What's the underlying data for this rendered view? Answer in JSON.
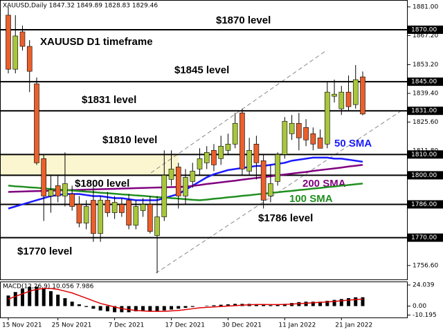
{
  "chart_data": {
    "type": "candlestick",
    "header": "XAUUSD,Daily 1847.32 1849.89 1828.83 1829.46",
    "title": "XAUUSD D1 timeframe",
    "categories": [
      "15 Nov 2021",
      null,
      null,
      null,
      null,
      null,
      null,
      "25 Nov 2021",
      null,
      null,
      null,
      null,
      null,
      null,
      null,
      "7 Dec 2021",
      null,
      null,
      null,
      null,
      null,
      null,
      null,
      "17 Dec 2021",
      null,
      null,
      null,
      null,
      null,
      null,
      null,
      "30 Dec 2021",
      null,
      null,
      null,
      null,
      null,
      null,
      null,
      "11 Jan 2022",
      null,
      null,
      null,
      null,
      null,
      null,
      null,
      "21 Jan 2022",
      null,
      null,
      null
    ],
    "open": [
      1877,
      1851,
      1869,
      1862,
      1844,
      1808,
      1790,
      1795,
      1790,
      1791,
      1786,
      1777,
      1788,
      1772,
      1788,
      1782,
      1786,
      1788,
      1776,
      1783,
      1786,
      1771,
      1780,
      1798,
      1804,
      1790,
      1797,
      1803,
      1806,
      1812,
      1808,
      1812,
      1815,
      1830,
      1802,
      1815,
      1807,
      1790,
      1797,
      1810,
      1820,
      1825,
      1823,
      1820,
      1818,
      1815,
      1838,
      1832,
      1840,
      1834,
      1847.32
    ],
    "high": [
      1881,
      1877,
      1872,
      1865,
      1847,
      1810,
      1800,
      1800,
      1811,
      1795,
      1790,
      1788,
      1795,
      1790,
      1792,
      1790,
      1789,
      1791,
      1788,
      1789,
      1790,
      1790,
      1812,
      1812,
      1806,
      1803,
      1806,
      1813,
      1814,
      1815,
      1819,
      1820,
      1830,
      1832,
      1818,
      1819,
      1810,
      1805,
      1811,
      1828,
      1829,
      1830,
      1827,
      1823,
      1822,
      1845,
      1846,
      1843,
      1848,
      1853,
      1849.89
    ],
    "low": [
      1849,
      1849,
      1860,
      1840,
      1805,
      1778,
      1782,
      1787,
      1785,
      1783,
      1775,
      1774,
      1768,
      1768,
      1780,
      1779,
      1780,
      1774,
      1774,
      1780,
      1772,
      1753,
      1778,
      1795,
      1784,
      1786,
      1794,
      1800,
      1803,
      1802,
      1805,
      1810,
      1813,
      1800,
      1800,
      1798,
      1784,
      1787,
      1795,
      1808,
      1817,
      1812,
      1814,
      1812,
      1813,
      1813,
      1835,
      1829,
      1831,
      1832,
      1828.83
    ],
    "close": [
      1851,
      1867,
      1862,
      1850,
      1806,
      1790,
      1793,
      1790,
      1796,
      1785,
      1777,
      1785,
      1772,
      1788,
      1782,
      1787,
      1782,
      1776,
      1785,
      1786,
      1773,
      1780,
      1800,
      1803,
      1790,
      1799,
      1802,
      1808,
      1811,
      1805,
      1814,
      1815,
      1825,
      1803,
      1812,
      1806,
      1788,
      1796,
      1810,
      1826,
      1825,
      1818,
      1817,
      1815,
      1813,
      1840,
      1839,
      1840,
      1833,
      1846,
      1829.46
    ],
    "up_color": "#a8c63c",
    "down_color": "#e9602c",
    "ylim": [
      1749.9,
      1884.3
    ],
    "yticks": [
      {
        "value": 1881,
        "label": "1881.00"
      },
      {
        "value": 1867.2,
        "label": "1867.20"
      },
      {
        "value": 1853.2,
        "label": "1853.20"
      },
      {
        "value": 1839.4,
        "label": "1839.40"
      },
      {
        "value": 1825.6,
        "label": "1825.60"
      },
      {
        "value": 1811.8,
        "label": "1811.80"
      },
      {
        "value": 1756.6,
        "label": "1756.60"
      }
    ],
    "levels": [
      {
        "value": 1870,
        "label": "1870.00",
        "text": "$1870 level"
      },
      {
        "value": 1845,
        "label": "1845.00",
        "text": "$1845 level"
      },
      {
        "value": 1831,
        "label": "1831.00",
        "text": "$1831 level"
      },
      {
        "value": 1810,
        "label": "1810.00",
        "text": "$1810 level"
      },
      {
        "value": 1800,
        "label": "1800.00",
        "text": "$1800 level"
      },
      {
        "value": 1786,
        "label": "1786.00",
        "text": "$1786 level"
      },
      {
        "value": 1770,
        "label": "1770.00",
        "text": "$1770 level"
      }
    ],
    "series": [
      {
        "name": "50 SMA",
        "color": "#1a1aff",
        "values": [
          1784,
          1785,
          1786,
          1787,
          1788,
          1789,
          1790,
          1790.5,
          1791,
          1791,
          1791,
          1790.5,
          1790,
          1790,
          1789.5,
          1789,
          1789,
          1788.5,
          1788,
          1788,
          1788,
          1788,
          1789,
          1790,
          1791,
          1793,
          1795,
          1797,
          1799,
          1800.5,
          1801.5,
          1802.5,
          1803,
          1803.5,
          1804,
          1804.5,
          1804.5,
          1805,
          1805.5,
          1806,
          1807,
          1807.5,
          1808,
          1808.5,
          1808.5,
          1808.5,
          1808,
          1808,
          1807.5,
          1807,
          1806.5
        ]
      },
      {
        "name": "200 SMA",
        "color": "#800080",
        "values": [
          1792,
          1792.1,
          1792.2,
          1792.3,
          1792.4,
          1792.5,
          1792.6,
          1792.7,
          1792.8,
          1792.9,
          1793,
          1793.1,
          1793.2,
          1793.3,
          1793.4,
          1793.5,
          1793.6,
          1793.7,
          1793.8,
          1793.9,
          1794,
          1794.1,
          1794.2,
          1794.3,
          1794.4,
          1794.5,
          1794.9,
          1795.3,
          1795.8,
          1796.2,
          1796.6,
          1797,
          1797.4,
          1797.9,
          1798.3,
          1798.7,
          1799.1,
          1799.5,
          1800,
          1800.4,
          1800.8,
          1801.2,
          1801.6,
          1802.1,
          1802.5,
          1802.9,
          1803.3,
          1803.7,
          1804.2,
          1804.6,
          1805
        ]
      },
      {
        "name": "100 SMA",
        "color": "#1f8f1f",
        "values": [
          1795,
          1794.7,
          1794.5,
          1794.2,
          1794,
          1793.7,
          1793.4,
          1793.2,
          1792.9,
          1792.7,
          1792.4,
          1792.1,
          1791.9,
          1791.6,
          1791.4,
          1791.1,
          1790.8,
          1790.6,
          1790.3,
          1790.1,
          1789.8,
          1789.5,
          1789.3,
          1789,
          1788.8,
          1788.5,
          1788.2,
          1788,
          1788.3,
          1788.7,
          1789,
          1789.4,
          1789.7,
          1790.1,
          1790.4,
          1790.8,
          1791.1,
          1791.5,
          1791.8,
          1792.2,
          1792.5,
          1792.9,
          1793.2,
          1793.6,
          1793.9,
          1794.3,
          1794.6,
          1795,
          1795.3,
          1795.7,
          1796
        ]
      }
    ],
    "macd": {
      "title": "MACD(12,26,9) 10.056 7.986",
      "ylim": [
        -13,
        28
      ],
      "yticks": [
        24.039,
        {
          "value": 0,
          "label": "0.00"
        },
        -10.195
      ],
      "histogram": [
        12,
        16,
        20,
        22,
        22,
        20,
        17,
        13,
        9,
        5,
        2,
        -1,
        -3,
        -5,
        -6,
        -7,
        -7,
        -7,
        -6,
        -6,
        -6,
        -6,
        -5,
        -4,
        -3,
        -2,
        -1,
        0,
        0.5,
        1,
        1.5,
        2,
        2.5,
        2.5,
        2.5,
        2,
        1.5,
        1,
        1.5,
        2.5,
        3.5,
        4.5,
        5,
        5,
        5,
        6,
        7,
        8,
        9,
        10,
        10.056
      ],
      "signal": [
        8,
        11,
        14,
        17,
        19,
        20,
        20,
        19,
        17,
        15,
        12,
        9,
        6,
        3,
        1,
        -1,
        -3,
        -4,
        -5,
        -5.5,
        -6,
        -6,
        -6,
        -5.5,
        -5,
        -4,
        -3,
        -2,
        -1.5,
        -1,
        -0.5,
        0,
        0.5,
        1,
        1.5,
        1.8,
        1.8,
        1.7,
        1.7,
        1.9,
        2.3,
        2.8,
        3.3,
        3.8,
        4.2,
        4.7,
        5.3,
        6,
        6.7,
        7.4,
        7.986
      ],
      "histogram_color": "#000000",
      "signal_color": "#e00000"
    }
  }
}
